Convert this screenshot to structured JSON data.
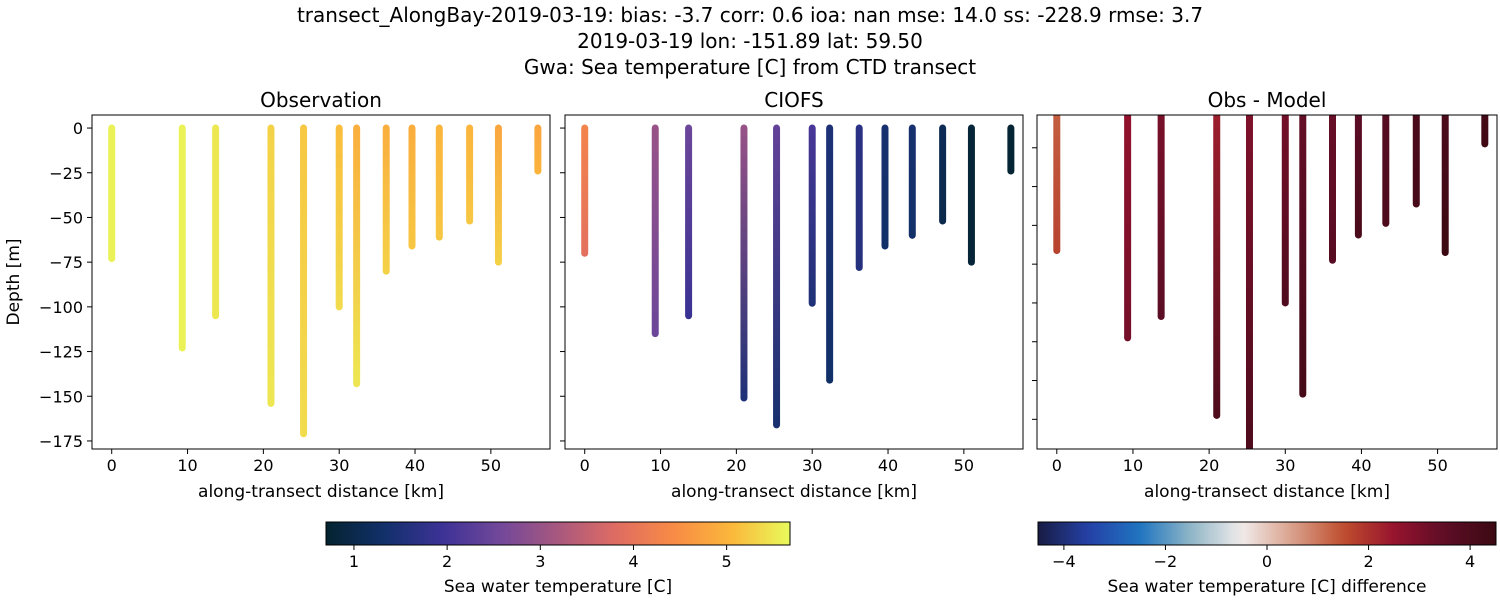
{
  "title_lines": [
    "transect_AlongBay-2019-03-19: bias: -3.7  corr: 0.6  ioa: nan  mse: 14.0  ss: -228.9  rmse: 3.7",
    "2019-03-19 lon: -151.89 lat: 59.50",
    "Gwa: Sea temperature [C] from CTD transect"
  ],
  "chart_data": [
    {
      "type": "scatter",
      "title": "Observation",
      "xlabel": "along-transect distance [km]",
      "ylabel": "Depth [m]",
      "xlim": [
        -2.6,
        57.8
      ],
      "ylim": [
        -179.5,
        7.3
      ],
      "xticks": [
        0,
        10,
        20,
        30,
        40,
        50
      ],
      "yticks": [
        0,
        -25,
        -50,
        -75,
        -100,
        -125,
        -150,
        -175
      ],
      "colormap": "thermal",
      "color_range": [
        0.7,
        5.68
      ],
      "casts": [
        {
          "x": 0,
          "max_depth": -73,
          "value_top": 5.6,
          "value_bottom": 5.6
        },
        {
          "x": 9.3,
          "max_depth": -123,
          "value_top": 5.6,
          "value_bottom": 5.6
        },
        {
          "x": 13.7,
          "max_depth": -105,
          "value_top": 5.5,
          "value_bottom": 5.5
        },
        {
          "x": 21.0,
          "max_depth": -154,
          "value_top": 5.3,
          "value_bottom": 5.5
        },
        {
          "x": 25.3,
          "max_depth": -171,
          "value_top": 5.2,
          "value_bottom": 5.4
        },
        {
          "x": 30.0,
          "max_depth": -100,
          "value_top": 5.1,
          "value_bottom": 5.4
        },
        {
          "x": 32.3,
          "max_depth": -143,
          "value_top": 4.9,
          "value_bottom": 5.5
        },
        {
          "x": 36.2,
          "max_depth": -80,
          "value_top": 4.9,
          "value_bottom": 5.3
        },
        {
          "x": 39.6,
          "max_depth": -66,
          "value_top": 4.9,
          "value_bottom": 5.2
        },
        {
          "x": 43.2,
          "max_depth": -61,
          "value_top": 5.0,
          "value_bottom": 5.2
        },
        {
          "x": 47.2,
          "max_depth": -52,
          "value_top": 5.0,
          "value_bottom": 5.2
        },
        {
          "x": 51.0,
          "max_depth": -75,
          "value_top": 4.8,
          "value_bottom": 5.3
        },
        {
          "x": 56.2,
          "max_depth": -24,
          "value_top": 4.8,
          "value_bottom": 5.0
        }
      ]
    },
    {
      "type": "scatter",
      "title": "CIOFS",
      "xlabel": "along-transect distance [km]",
      "ylabel": "",
      "xlim": [
        -2.6,
        57.8
      ],
      "ylim": [
        -179.5,
        7.3
      ],
      "xticks": [
        0,
        10,
        20,
        30,
        40,
        50
      ],
      "yticks": [
        0,
        -25,
        -50,
        -75,
        -100,
        -125,
        -150,
        -175
      ],
      "colormap": "thermal",
      "color_range": [
        0.7,
        5.68
      ],
      "casts": [
        {
          "x": 0,
          "max_depth": -70,
          "value_top": 4.3,
          "value_bottom": 3.9
        },
        {
          "x": 9.3,
          "max_depth": -115,
          "value_top": 3.0,
          "value_bottom": 2.5
        },
        {
          "x": 13.7,
          "max_depth": -105,
          "value_top": 2.5,
          "value_bottom": 1.9
        },
        {
          "x": 21.0,
          "max_depth": -151,
          "value_top": 3.0,
          "value_bottom": 1.5
        },
        {
          "x": 25.3,
          "max_depth": -166,
          "value_top": 2.4,
          "value_bottom": 1.4
        },
        {
          "x": 30.0,
          "max_depth": -98,
          "value_top": 2.1,
          "value_bottom": 1.5
        },
        {
          "x": 32.3,
          "max_depth": -141,
          "value_top": 1.5,
          "value_bottom": 1.3
        },
        {
          "x": 36.2,
          "max_depth": -78,
          "value_top": 1.7,
          "value_bottom": 1.6
        },
        {
          "x": 39.6,
          "max_depth": -66,
          "value_top": 1.4,
          "value_bottom": 1.3
        },
        {
          "x": 43.2,
          "max_depth": -60,
          "value_top": 1.4,
          "value_bottom": 1.3
        },
        {
          "x": 47.2,
          "max_depth": -52,
          "value_top": 1.1,
          "value_bottom": 1.0
        },
        {
          "x": 51.0,
          "max_depth": -75,
          "value_top": 0.8,
          "value_bottom": 0.8
        },
        {
          "x": 56.2,
          "max_depth": -24,
          "value_top": 0.75,
          "value_bottom": 0.75
        }
      ]
    },
    {
      "type": "scatter",
      "title": "Obs - Model",
      "xlabel": "along-transect distance [km]",
      "ylabel": "",
      "xlim": [
        -2.6,
        57.8
      ],
      "ylim": [
        -175.3,
        -3.1
      ],
      "xticks": [
        0,
        10,
        20,
        30,
        40,
        50
      ],
      "yticks": [
        -20,
        -40,
        -60,
        -80,
        -100,
        -120,
        -140,
        -160
      ],
      "colormap": "balance",
      "color_range": [
        -4.51,
        4.51
      ],
      "casts": [
        {
          "x": 0,
          "max_depth": -73,
          "value_top": 1.3,
          "value_bottom": 1.7
        },
        {
          "x": 9.3,
          "max_depth": -118,
          "value_top": 2.6,
          "value_bottom": 3.1
        },
        {
          "x": 13.7,
          "max_depth": -107,
          "value_top": 3.0,
          "value_bottom": 3.6
        },
        {
          "x": 21.0,
          "max_depth": -158,
          "value_top": 2.3,
          "value_bottom": 4.0
        },
        {
          "x": 25.3,
          "max_depth": -175,
          "value_top": 2.9,
          "value_bottom": 4.0
        },
        {
          "x": 30.0,
          "max_depth": -100,
          "value_top": 3.1,
          "value_bottom": 3.9
        },
        {
          "x": 32.3,
          "max_depth": -147,
          "value_top": 3.4,
          "value_bottom": 4.2
        },
        {
          "x": 36.2,
          "max_depth": -78,
          "value_top": 3.3,
          "value_bottom": 3.7
        },
        {
          "x": 39.6,
          "max_depth": -65,
          "value_top": 3.5,
          "value_bottom": 4.1
        },
        {
          "x": 43.2,
          "max_depth": -59,
          "value_top": 3.7,
          "value_bottom": 4.0
        },
        {
          "x": 47.2,
          "max_depth": -49,
          "value_top": 4.0,
          "value_bottom": 4.2
        },
        {
          "x": 51.0,
          "max_depth": -74,
          "value_top": 4.0,
          "value_bottom": 4.5
        },
        {
          "x": 56.2,
          "max_depth": -18,
          "value_top": 4.2,
          "value_bottom": 4.4
        }
      ]
    }
  ],
  "colorbars": [
    {
      "label": "Sea water temperature [C]",
      "colormap": "thermal",
      "range": [
        0.7,
        5.68
      ],
      "ticks": [
        1,
        2,
        3,
        4,
        5
      ]
    },
    {
      "label": "Sea water temperature [C] difference",
      "colormap": "balance",
      "range": [
        -4.51,
        4.51
      ],
      "ticks": [
        -4,
        -2,
        0,
        2,
        4
      ]
    }
  ],
  "colormaps": {
    "thermal": [
      "#04232f",
      "#12306a",
      "#3c3296",
      "#72489a",
      "#a8587f",
      "#df6c62",
      "#f88b45",
      "#fbb83b",
      "#e8fa5b"
    ],
    "balance": [
      "#181c43",
      "#2541a8",
      "#1f74c0",
      "#8fb6c7",
      "#f1eceb",
      "#d9a08b",
      "#bf4e2e",
      "#97132e",
      "#5d0d26",
      "#3c0912"
    ]
  }
}
